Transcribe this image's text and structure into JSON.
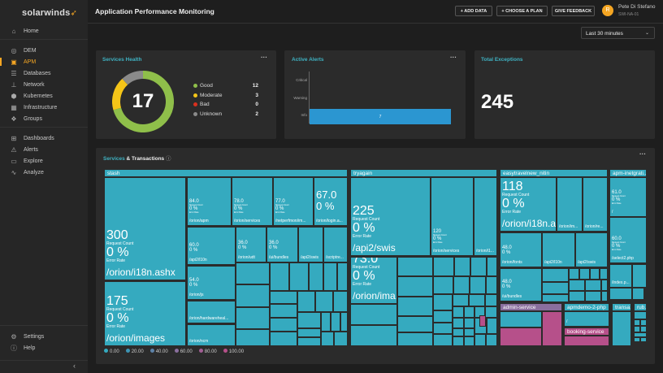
{
  "app": {
    "logo": "solarwinds",
    "title": "Application Performance Monitoring"
  },
  "sidebar": {
    "items": [
      {
        "label": "Home",
        "icon": "home-icon",
        "glyph": "⌂"
      },
      {
        "label": "DEM",
        "icon": "dem-icon",
        "glyph": "◎"
      },
      {
        "label": "APM",
        "icon": "apm-icon",
        "glyph": "▣",
        "active": true
      },
      {
        "label": "Databases",
        "icon": "database-icon",
        "glyph": "☰"
      },
      {
        "label": "Network",
        "icon": "network-icon",
        "glyph": "⊥"
      },
      {
        "label": "Kubernetes",
        "icon": "kubernetes-icon",
        "glyph": "⬢"
      },
      {
        "label": "Infrastructure",
        "icon": "infrastructure-icon",
        "glyph": "▦"
      },
      {
        "label": "Groups",
        "icon": "groups-icon",
        "glyph": "❖"
      },
      {
        "label": "Dashboards",
        "icon": "dashboards-icon",
        "glyph": "⊞"
      },
      {
        "label": "Alerts",
        "icon": "alert-icon",
        "glyph": "⚠"
      },
      {
        "label": "Explore",
        "icon": "folder-icon",
        "glyph": "▭"
      },
      {
        "label": "Analyze",
        "icon": "analyze-icon",
        "glyph": "∿"
      },
      {
        "label": "Settings",
        "icon": "settings-icon",
        "glyph": "⚙"
      },
      {
        "label": "Help",
        "icon": "help-icon",
        "glyph": "ⓘ"
      }
    ],
    "collapse": "‹"
  },
  "header": {
    "buttons": [
      "+ ADD DATA",
      "+ CHOOSE A PLAN",
      "GIVE FEEDBACK"
    ],
    "user": {
      "initial": "R",
      "name": "Pete Di Stefano",
      "org": "SWI-NA-01"
    }
  },
  "time_range": {
    "selected": "Last 30 minutes"
  },
  "services_health": {
    "title": "Services Health",
    "menu": "···",
    "total": "17",
    "legend": [
      {
        "label": "Good",
        "value": 12,
        "color": "#8fbf4a"
      },
      {
        "label": "Moderate",
        "value": 3,
        "color": "#f5c518"
      },
      {
        "label": "Bad",
        "value": 0,
        "color": "#d9301e"
      },
      {
        "label": "Unknown",
        "value": 2,
        "color": "#8a8a8a"
      }
    ]
  },
  "active_alerts": {
    "title": "Active Alerts",
    "menu": "···",
    "chart_data": {
      "type": "bar",
      "orientation": "horizontal",
      "categories": [
        "Critical",
        "Warning",
        "Info"
      ],
      "values": [
        0,
        0,
        7
      ],
      "color": "#2b96d1"
    }
  },
  "total_exceptions": {
    "title": "Total Exceptions",
    "value": "245"
  },
  "services_transactions": {
    "title_a": "Services",
    "title_b": " & Transactions",
    "info_icon": "info-icon",
    "menu": "···",
    "groups": [
      "stash",
      "tryagain",
      "easytravelnew_nitin",
      "apm-inetgrati...",
      "admin-service",
      "apmdemo-2-php",
      "booking-service",
      "transa...",
      "rub..."
    ],
    "tiles": {
      "t1": {
        "v": "300",
        "c": "Request Count",
        "r": "0 %",
        "rl": "Error Rate",
        "n": "/orion/i18n.ashx"
      },
      "t2": {
        "v": "175",
        "c": "Request Count",
        "r": "0 %",
        "rl": "Error Rate",
        "n": "/orion/images"
      },
      "t3": {
        "v": "84.0",
        "c": "Request Count",
        "r": "0 %",
        "rl": "Error Rate",
        "n": "/orion/apm"
      },
      "t4": {
        "v": "78.0",
        "c": "Request Count",
        "r": "0 %",
        "rl": "Error Rate",
        "n": "/orion/services"
      },
      "t5": {
        "v": "77.0",
        "c": "Request Count",
        "r": "0 %",
        "rl": "Error Rate",
        "n": "/netperfmon/im..."
      },
      "t6": {
        "v": "67.0",
        "r": "0 %",
        "n": "/orion/login.a..."
      },
      "t7": {
        "v": "60.0",
        "r": "0 %",
        "n": "/api2/l10n"
      },
      "t8": {
        "v": "36.0",
        "r": "0 %",
        "n": "/orion/udt"
      },
      "t9": {
        "v": "36.0",
        "r": "0 %",
        "n": "/ui/bundles"
      },
      "t10": {
        "n": "/api2/swis"
      },
      "t11": {
        "n": "/scriptre..."
      },
      "t12": {
        "v": "54.0",
        "r": "0 %",
        "n": "/orion/js"
      },
      "t13": {
        "n": "/orion/hardwareheal..."
      },
      "t14": {
        "n": "/orion/ncm"
      },
      "t15": {
        "v": "225",
        "c": "Request Count",
        "r": "0 %",
        "rl": "Error Rate",
        "n": "/api2/swis"
      },
      "t16": {
        "v": "120",
        "c": "Request Count",
        "r": "0 %",
        "rl": "Error Rate",
        "n": "/orion/services"
      },
      "t17": {
        "n": "/orion/i1..."
      },
      "t18": {
        "v": "73.0",
        "c": "Request Count",
        "r": "0 %",
        "rl": "Error Rate",
        "n": "/orion/ima..."
      },
      "t19": {
        "v": "118",
        "c": "Request Count",
        "r": "0 %",
        "rl": "Error Rate",
        "n": "/orion/i18n.as..."
      },
      "t20": {
        "n": "/orion/im..."
      },
      "t21": {
        "n": "/orion/re..."
      },
      "t22": {
        "v": "48.0",
        "r": "0 %",
        "n": "/orion/fonts"
      },
      "t23": {
        "n": "/api2/l10n"
      },
      "t24": {
        "n": "/api2/swis"
      },
      "t25": {
        "v": "48.0",
        "r": "0 %",
        "n": "/ui/bundles"
      },
      "t26": {
        "v": "61.0",
        "c": "Request Count",
        "r": "0 %",
        "rl": "Error Rate",
        "n": "/"
      },
      "t27": {
        "v": "60.0",
        "c": "Request Count",
        "r": "0 %",
        "rl": "Error Rate",
        "n": "/select2.php"
      },
      "t28": {
        "n": "/index.p..."
      },
      "t29": {
        "n": "/"
      }
    },
    "color_scale": [
      {
        "label": "0.00",
        "color": "#35aabf"
      },
      {
        "label": "20.00",
        "color": "#3d95b5"
      },
      {
        "label": "40.00",
        "color": "#5d82a8"
      },
      {
        "label": "60.00",
        "color": "#8a6f9e"
      },
      {
        "label": "80.00",
        "color": "#a15e94"
      },
      {
        "label": "100.00",
        "color": "#b6508a"
      }
    ]
  }
}
